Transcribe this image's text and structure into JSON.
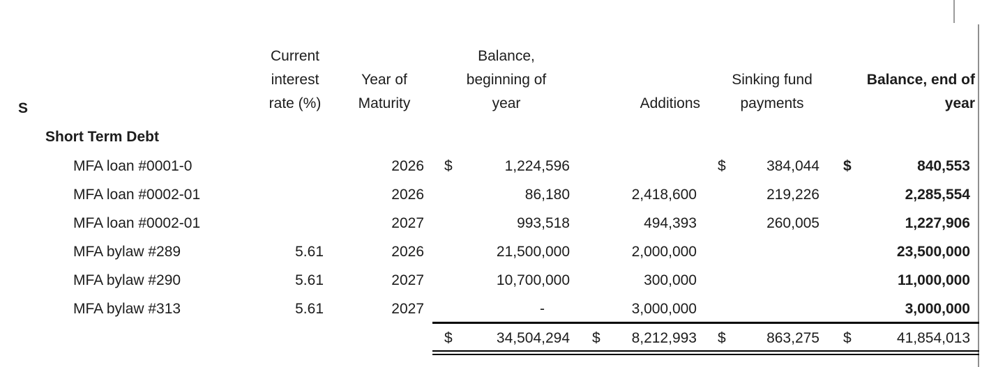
{
  "colors": {
    "text": "#1c1c1c",
    "table_rule": "#000000",
    "gridline_gray": "#8f8f8f"
  },
  "header_fragment": "S",
  "section_title": "Short Term Debt",
  "columns": {
    "rate": [
      "Current",
      "interest",
      "rate (%)"
    ],
    "maturity": [
      "Year of",
      "Maturity"
    ],
    "balance_begin": [
      "Balance,",
      "beginning of",
      "year"
    ],
    "additions": [
      "Additions"
    ],
    "sinking": [
      "Sinking fund",
      "payments"
    ],
    "balance_end": [
      "Balance, end of",
      "year"
    ]
  },
  "rows": [
    {
      "label": "MFA loan #0001-0",
      "rate": "",
      "maturity": "2026",
      "begin_cur": "$",
      "begin": "1,224,596",
      "add_cur": "",
      "additions": "",
      "sink_cur": "$",
      "sinking": "384,044",
      "end_cur": "$",
      "end": "840,553"
    },
    {
      "label": "MFA loan #0002-01",
      "rate": "",
      "maturity": "2026",
      "begin_cur": "",
      "begin": "86,180",
      "add_cur": "",
      "additions": "2,418,600",
      "sink_cur": "",
      "sinking": "219,226",
      "end_cur": "",
      "end": "2,285,554"
    },
    {
      "label": "MFA loan #0002-01",
      "rate": "",
      "maturity": "2027",
      "begin_cur": "",
      "begin": "993,518",
      "add_cur": "",
      "additions": "494,393",
      "sink_cur": "",
      "sinking": "260,005",
      "end_cur": "",
      "end": "1,227,906"
    },
    {
      "label": "MFA bylaw #289",
      "rate": "5.61",
      "maturity": "2026",
      "begin_cur": "",
      "begin": "21,500,000",
      "add_cur": "",
      "additions": "2,000,000",
      "sink_cur": "",
      "sinking": "",
      "end_cur": "",
      "end": "23,500,000"
    },
    {
      "label": "MFA bylaw #290",
      "rate": "5.61",
      "maturity": "2027",
      "begin_cur": "",
      "begin": "10,700,000",
      "add_cur": "",
      "additions": "300,000",
      "sink_cur": "",
      "sinking": "",
      "end_cur": "",
      "end": "11,000,000"
    },
    {
      "label": "MFA bylaw #313",
      "rate": "5.61",
      "maturity": "2027",
      "begin_cur": "",
      "begin": "-",
      "add_cur": "",
      "additions": "3,000,000",
      "sink_cur": "",
      "sinking": "",
      "end_cur": "",
      "end": "3,000,000"
    }
  ],
  "totals": {
    "begin_cur": "$",
    "begin": "34,504,294",
    "add_cur": "$",
    "additions": "8,212,993",
    "sink_cur": "$",
    "sinking": "863,275",
    "end_cur": "$",
    "end": "41,854,013"
  }
}
